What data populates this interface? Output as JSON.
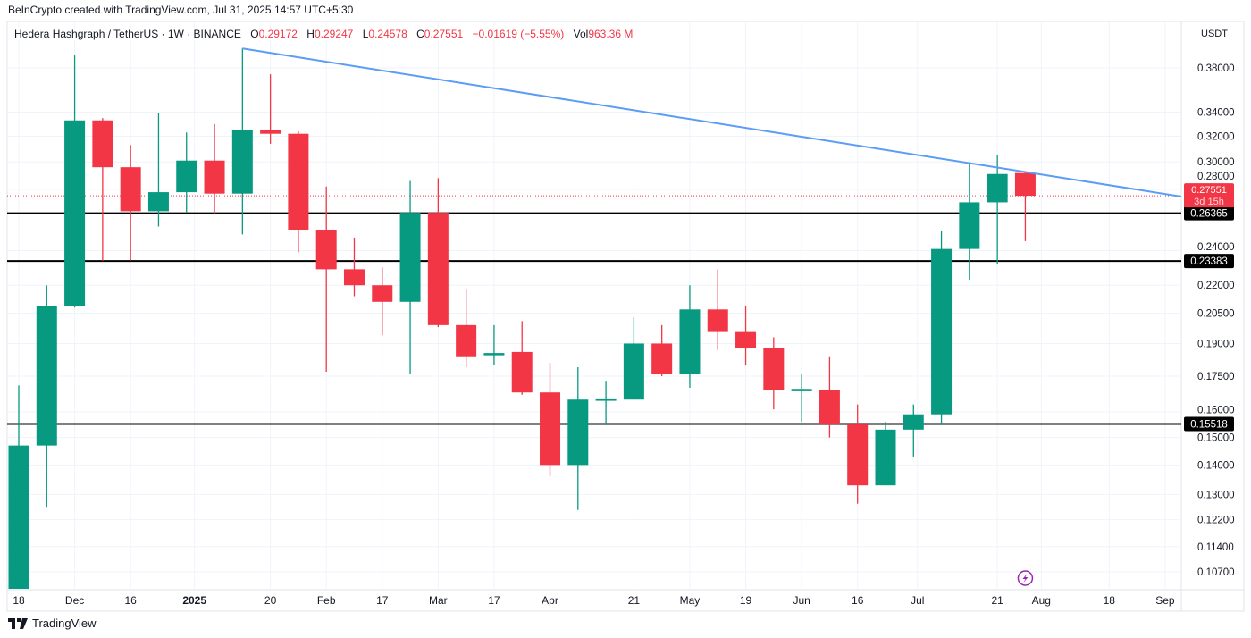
{
  "credit": "BeInCrypto created with TradingView.com, Jul 31, 2025 14:57 UTC+5:30",
  "legend": {
    "symbol": "Hedera Hashgraph / TetherUS · 1W · BINANCE",
    "o_label": "O",
    "o": "0.29172",
    "h_label": "H",
    "h": "0.29247",
    "l_label": "L",
    "l": "0.24578",
    "c_label": "C",
    "c": "0.27551",
    "change": "−0.01619 (−5.55%)",
    "vol_label": "Vol",
    "vol": "963.36 M"
  },
  "currency": "USDT",
  "footer": {
    "brand": "TradingView",
    "icon": "tradingview-logo-icon"
  },
  "colors": {
    "up": "#089981",
    "down": "#f23645",
    "trendline": "#5b9cf6",
    "level": "#000000",
    "grid": "#f0f3fa",
    "marker": "#9c27b0"
  },
  "chart_data": {
    "type": "candlestick",
    "timeframe": "1W",
    "yscale": "log",
    "grid": true,
    "ylim": [
      0.1,
      0.41
    ],
    "y_ticks": [
      "0.38000",
      "0.34000",
      "0.32000",
      "0.30000",
      "0.28000",
      "0.24000",
      "0.22000",
      "0.20500",
      "0.19000",
      "0.17500",
      "0.16000",
      "0.15000",
      "0.14000",
      "0.13000",
      "0.12200",
      "0.11400",
      "0.10700"
    ],
    "x_ticks": [
      {
        "date": "2024-11-18",
        "label": "18"
      },
      {
        "date": "2024-12-02",
        "label": "Dec"
      },
      {
        "date": "2024-12-16",
        "label": "16"
      },
      {
        "date": "2025-01-01",
        "label": "2025",
        "bold": true
      },
      {
        "date": "2025-01-20",
        "label": "20"
      },
      {
        "date": "2025-02-03",
        "label": "Feb"
      },
      {
        "date": "2025-02-17",
        "label": "17"
      },
      {
        "date": "2025-03-03",
        "label": "Mar"
      },
      {
        "date": "2025-03-17",
        "label": "17"
      },
      {
        "date": "2025-03-31",
        "label": "Apr"
      },
      {
        "date": "2025-04-21",
        "label": "21"
      },
      {
        "date": "2025-05-05",
        "label": "May"
      },
      {
        "date": "2025-05-19",
        "label": "19"
      },
      {
        "date": "2025-06-02",
        "label": "Jun"
      },
      {
        "date": "2025-06-16",
        "label": "16"
      },
      {
        "date": "2025-07-01",
        "label": "Jul"
      },
      {
        "date": "2025-07-21",
        "label": "21"
      },
      {
        "date": "2025-08-01",
        "label": "Aug"
      },
      {
        "date": "2025-08-18",
        "label": "18"
      },
      {
        "date": "2025-09-01",
        "label": "Sep"
      }
    ],
    "columns": [
      "date",
      "open",
      "high",
      "low",
      "close"
    ],
    "candles": [
      [
        "2024-11-18",
        0.102,
        0.171,
        0.095,
        0.147
      ],
      [
        "2024-11-25",
        0.147,
        0.22,
        0.126,
        0.209
      ],
      [
        "2024-12-02",
        0.209,
        0.392,
        0.208,
        0.333
      ],
      [
        "2024-12-09",
        0.333,
        0.335,
        0.234,
        0.296
      ],
      [
        "2024-12-16",
        0.296,
        0.313,
        0.234,
        0.265
      ],
      [
        "2024-12-23",
        0.265,
        0.339,
        0.255,
        0.278
      ],
      [
        "2024-12-30",
        0.278,
        0.323,
        0.264,
        0.301
      ],
      [
        "2025-01-06",
        0.301,
        0.33,
        0.263,
        0.277
      ],
      [
        "2025-01-13",
        0.277,
        0.399,
        0.25,
        0.325
      ],
      [
        "2025-01-20",
        0.325,
        0.374,
        0.314,
        0.322
      ],
      [
        "2025-01-27",
        0.322,
        0.324,
        0.239,
        0.253
      ],
      [
        "2025-02-03",
        0.253,
        0.282,
        0.177,
        0.229
      ],
      [
        "2025-02-10",
        0.229,
        0.248,
        0.214,
        0.22
      ],
      [
        "2025-02-17",
        0.22,
        0.23,
        0.194,
        0.211
      ],
      [
        "2025-02-24",
        0.211,
        0.286,
        0.176,
        0.264
      ],
      [
        "2025-03-03",
        0.264,
        0.288,
        0.198,
        0.199
      ],
      [
        "2025-03-10",
        0.199,
        0.218,
        0.179,
        0.184
      ],
      [
        "2025-03-17",
        0.1845,
        0.199,
        0.18,
        0.1855
      ],
      [
        "2025-03-24",
        0.186,
        0.201,
        0.167,
        0.168
      ],
      [
        "2025-03-31",
        0.168,
        0.181,
        0.136,
        0.14
      ],
      [
        "2025-04-07",
        0.14,
        0.179,
        0.125,
        0.165
      ],
      [
        "2025-04-14",
        0.1645,
        0.173,
        0.155,
        0.1655
      ],
      [
        "2025-04-21",
        0.165,
        0.203,
        0.165,
        0.19
      ],
      [
        "2025-04-28",
        0.19,
        0.199,
        0.175,
        0.176
      ],
      [
        "2025-05-05",
        0.176,
        0.22,
        0.17,
        0.207
      ],
      [
        "2025-05-12",
        0.207,
        0.229,
        0.187,
        0.196
      ],
      [
        "2025-05-19",
        0.196,
        0.209,
        0.18,
        0.188
      ],
      [
        "2025-05-26",
        0.188,
        0.193,
        0.161,
        0.169
      ],
      [
        "2025-06-02",
        0.1685,
        0.176,
        0.156,
        0.1695
      ],
      [
        "2025-06-09",
        0.169,
        0.184,
        0.15,
        0.155
      ],
      [
        "2025-06-16",
        0.155,
        0.163,
        0.127,
        0.133
      ],
      [
        "2025-06-23",
        0.133,
        0.156,
        0.133,
        0.153
      ],
      [
        "2025-06-30",
        0.153,
        0.163,
        0.143,
        0.159
      ],
      [
        "2025-07-07",
        0.159,
        0.252,
        0.155,
        0.241
      ],
      [
        "2025-07-14",
        0.241,
        0.299,
        0.223,
        0.271
      ],
      [
        "2025-07-21",
        0.271,
        0.305,
        0.232,
        0.291
      ],
      [
        "2025-07-28",
        0.29172,
        0.29247,
        0.24578,
        0.27551
      ]
    ],
    "horizontal_levels": [
      {
        "price": 0.26365,
        "label": "0.26365"
      },
      {
        "price": 0.23383,
        "label": "0.23383"
      },
      {
        "price": 0.15518,
        "label": "0.15518"
      }
    ],
    "trendline": [
      [
        "2025-01-13",
        0.399
      ],
      [
        "2025-07-28",
        0.2925
      ]
    ],
    "last_price": {
      "price": 0.27551,
      "label": "0.27551",
      "countdown": "3d 15h"
    },
    "marker": {
      "date": "2025-07-28",
      "icon": "lightning-icon"
    }
  }
}
